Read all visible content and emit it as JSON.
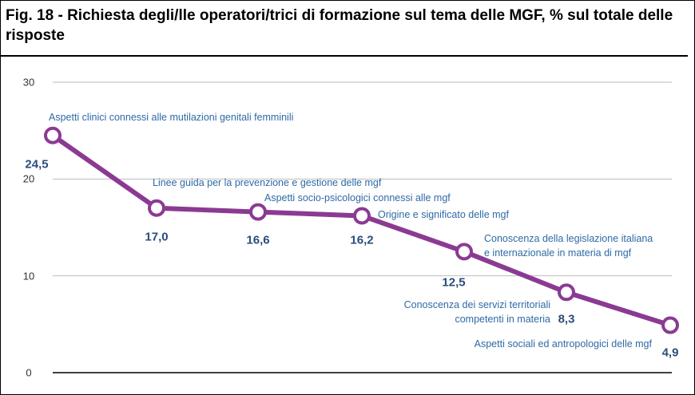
{
  "chart_data": {
    "type": "line",
    "title": "Fig. 18 - Richiesta degli/lle operatori/trici di formazione sul tema delle MGF, % sul totale delle risposte",
    "categories": [
      "Aspetti clinici connessi alle mutilazioni genitali femminili",
      "Linee guida per la prevenzione e gestione delle mgf",
      "Aspetti socio-psicologici connessi alle mgf",
      "Origine e significato delle mgf",
      "Conoscenza della legislazione italiana e internazionale in materia di mgf",
      "Conoscenza dei servizi territoriali competenti in materia",
      "Aspetti sociali ed antropologici delle mgf"
    ],
    "values": [
      24.5,
      17.0,
      16.6,
      16.2,
      12.5,
      8.3,
      4.9
    ],
    "value_labels": [
      "24,5",
      "17,0",
      "16,6",
      "16,2",
      "12,5",
      "8,3",
      "4,9"
    ],
    "color": "#8b3a93",
    "ylim": [
      0,
      30
    ],
    "yticks": [
      0,
      10,
      20,
      30
    ],
    "grid": true
  }
}
